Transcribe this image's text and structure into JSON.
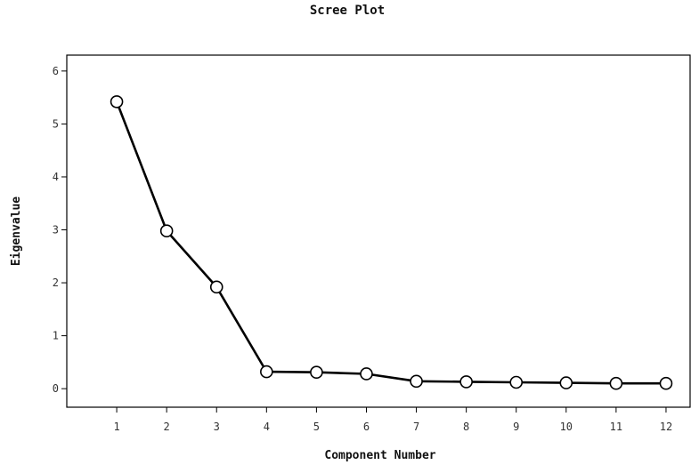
{
  "chart_data": {
    "type": "line",
    "title": "Scree Plot",
    "xlabel": "Component Number",
    "ylabel": "Eigenvalue",
    "x": [
      1,
      2,
      3,
      4,
      5,
      6,
      7,
      8,
      9,
      10,
      11,
      12
    ],
    "xticks": [
      "1",
      "2",
      "3",
      "4",
      "5",
      "6",
      "7",
      "8",
      "9",
      "10",
      "11",
      "12"
    ],
    "xlim": [
      0,
      12.5
    ],
    "yticks": [
      0,
      1,
      2,
      3,
      4,
      5,
      6
    ],
    "ylim": [
      -0.35,
      6.3
    ],
    "grid": false,
    "series": [
      {
        "values": [
          5.42,
          2.98,
          1.92,
          0.32,
          0.31,
          0.28,
          0.14,
          0.13,
          0.12,
          0.11,
          0.1,
          0.1
        ],
        "marker": "open-circle",
        "color": "#000000"
      }
    ]
  }
}
